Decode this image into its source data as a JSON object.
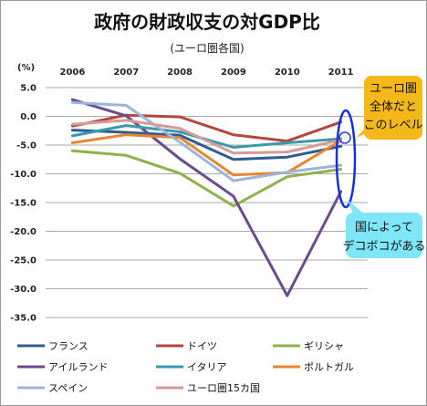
{
  "chart_data": {
    "type": "line",
    "title": "政府の財政収支の対GDP比",
    "subtitle": "(ユーロ圏各国)",
    "ylabel": "(%)",
    "x": [
      "2006",
      "2007",
      "2008",
      "2009",
      "2010",
      "2011"
    ],
    "ylim": [
      -35,
      5
    ],
    "yticks": [
      5,
      0,
      -5,
      -10,
      -15,
      -20,
      -25,
      -30,
      -35
    ],
    "ytick_labels": [
      "5.0",
      "0.0",
      "-5.0",
      "-10.0",
      "-15.0",
      "-20.0",
      "-25.0",
      "-30.0",
      "-35.0"
    ],
    "grid": true,
    "legend_position": "bottom",
    "series": [
      {
        "name": "フランス",
        "color": "#2f5c8f",
        "values": [
          -2.4,
          -2.8,
          -3.3,
          -7.5,
          -7.1,
          -5.2
        ]
      },
      {
        "name": "ドイツ",
        "color": "#b34740",
        "values": [
          -1.7,
          0.2,
          -0.1,
          -3.2,
          -4.3,
          -1.0
        ]
      },
      {
        "name": "ギリシャ",
        "color": "#8fb04a",
        "values": [
          -6.0,
          -6.8,
          -9.9,
          -15.6,
          -10.5,
          -9.2
        ]
      },
      {
        "name": "アイルランド",
        "color": "#6a4c8c",
        "values": [
          2.9,
          0.1,
          -7.4,
          -13.9,
          -31.2,
          -13.1
        ]
      },
      {
        "name": "イタリア",
        "color": "#3a9aaa",
        "values": [
          -3.4,
          -1.6,
          -2.7,
          -5.4,
          -4.6,
          -3.9
        ]
      },
      {
        "name": "ポルトガル",
        "color": "#e8852e",
        "values": [
          -4.6,
          -3.2,
          -3.7,
          -10.2,
          -9.8,
          -4.2
        ]
      },
      {
        "name": "スペイン",
        "color": "#9bb4d9",
        "values": [
          2.4,
          1.9,
          -4.5,
          -11.2,
          -9.7,
          -8.5
        ]
      },
      {
        "name": "ユーロ圏15カ国",
        "color": "#d79a96",
        "values": [
          -1.4,
          -0.7,
          -2.1,
          -6.4,
          -6.2,
          -4.1
        ]
      }
    ],
    "annotations": [
      {
        "text_lines": [
          "ユーロ圏",
          "全体だと",
          "このレベル"
        ],
        "color": "#f5b81b"
      },
      {
        "text_lines": [
          "国によって",
          "デコボコがある"
        ],
        "color": "#7ee6f7"
      }
    ]
  }
}
